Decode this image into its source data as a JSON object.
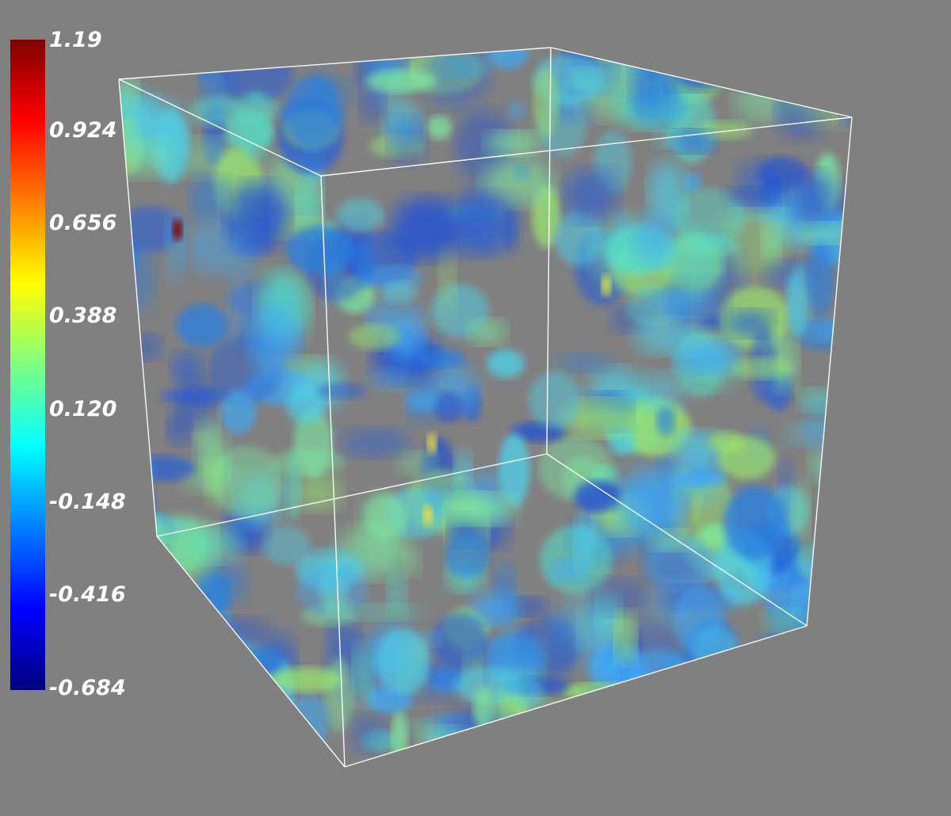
{
  "colorbar": {
    "min": -0.684,
    "max": 1.19,
    "colormap": "jet",
    "colors": [
      "#00007f",
      "#0000ff",
      "#007fff",
      "#00ffff",
      "#7fff7f",
      "#ffff00",
      "#ff7f00",
      "#ff0000",
      "#7f0000"
    ],
    "tick_labels": [
      "1.19",
      "0.924",
      "0.656",
      "0.388",
      "0.120",
      "-0.148",
      "-0.416",
      "-0.684"
    ]
  },
  "scene": {
    "background": "#808080",
    "box_outline_color": "#ffffff",
    "content": "volume rendering of a 3D scalar field inside a cube outline"
  }
}
